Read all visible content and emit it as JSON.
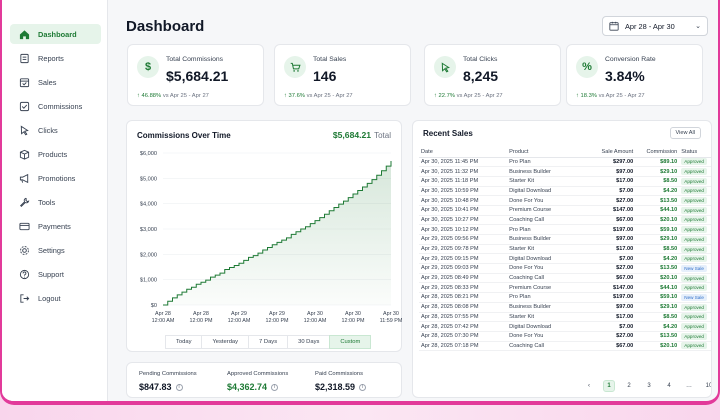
{
  "sidebar": {
    "items": [
      {
        "label": "Dashboard",
        "icon": "home-icon"
      },
      {
        "label": "Reports",
        "icon": "reports-icon"
      },
      {
        "label": "Sales",
        "icon": "sales-icon"
      },
      {
        "label": "Commissions",
        "icon": "commissions-icon"
      },
      {
        "label": "Clicks",
        "icon": "cursor-icon"
      },
      {
        "label": "Products",
        "icon": "box-icon"
      },
      {
        "label": "Promotions",
        "icon": "megaphone-icon"
      },
      {
        "label": "Tools",
        "icon": "wrench-icon"
      },
      {
        "label": "Payments",
        "icon": "card-icon"
      },
      {
        "label": "Settings",
        "icon": "gear-icon"
      },
      {
        "label": "Support",
        "icon": "help-icon"
      },
      {
        "label": "Logout",
        "icon": "logout-icon"
      }
    ]
  },
  "header": {
    "title": "Dashboard",
    "date_range": "Apr 28 - Apr 30"
  },
  "kpis": [
    {
      "label": "Total Commissions",
      "value": "$5,684.21",
      "change": "46.88%",
      "compare": "vs Apr 25 - Apr 27",
      "icon": "dollar-icon"
    },
    {
      "label": "Total Sales",
      "value": "146",
      "change": "37.6%",
      "compare": "vs Apr 25 - Apr 27",
      "icon": "cart-icon"
    },
    {
      "label": "Total Clicks",
      "value": "8,245",
      "change": "22.7%",
      "compare": "vs Apr 25 - Apr 27",
      "icon": "cursor-icon"
    },
    {
      "label": "Conversion Rate",
      "value": "3.84%",
      "change": "18.3%",
      "compare": "vs Apr 25 - Apr 27",
      "icon": "percent-icon"
    }
  ],
  "chart": {
    "title": "Commissions Over Time",
    "total_value": "$5,684.21",
    "total_label": "Total",
    "filters": [
      "Today",
      "Yesterday",
      "7 Days",
      "30 Days",
      "Custom"
    ],
    "active_filter": "Custom"
  },
  "chart_data": {
    "type": "area",
    "title": "Commissions Over Time",
    "ylim": [
      0,
      6000
    ],
    "yticks": [
      "$0",
      "$1,000",
      "$2,000",
      "$3,000",
      "$4,000",
      "$5,000",
      "$6,000"
    ],
    "xticks": [
      [
        "Apr 28",
        "12:00 AM"
      ],
      [
        "Apr 28",
        "12:00 PM"
      ],
      [
        "Apr 29",
        "12:00 AM"
      ],
      [
        "Apr 29",
        "12:00 PM"
      ],
      [
        "Apr 30",
        "12:00 AM"
      ],
      [
        "Apr 30",
        "12:00 PM"
      ],
      [
        "Apr 30",
        "11:59 PM"
      ]
    ],
    "x_hours": [
      0,
      12,
      24,
      36,
      48,
      60,
      72
    ],
    "series": [
      {
        "points": [
          [
            0,
            0
          ],
          [
            1.5,
            150
          ],
          [
            3,
            280
          ],
          [
            4.5,
            400
          ],
          [
            6,
            510
          ],
          [
            7.5,
            620
          ],
          [
            9,
            700
          ],
          [
            10.5,
            820
          ],
          [
            12,
            900
          ],
          [
            13.5,
            980
          ],
          [
            15,
            1100
          ],
          [
            16.5,
            1180
          ],
          [
            18,
            1260
          ],
          [
            19.5,
            1400
          ],
          [
            21,
            1480
          ],
          [
            22.5,
            1560
          ],
          [
            24,
            1650
          ],
          [
            25.5,
            1760
          ],
          [
            27,
            1880
          ],
          [
            28.5,
            1950
          ],
          [
            30,
            2050
          ],
          [
            31.5,
            2170
          ],
          [
            33,
            2270
          ],
          [
            34.5,
            2380
          ],
          [
            36,
            2470
          ],
          [
            37.5,
            2560
          ],
          [
            39,
            2650
          ],
          [
            40.5,
            2790
          ],
          [
            42,
            2890
          ],
          [
            43.5,
            3000
          ],
          [
            45,
            3090
          ],
          [
            46.5,
            3210
          ],
          [
            48,
            3330
          ],
          [
            49.5,
            3450
          ],
          [
            51,
            3580
          ],
          [
            52.5,
            3720
          ],
          [
            54,
            3850
          ],
          [
            55.5,
            3980
          ],
          [
            57,
            4100
          ],
          [
            58.5,
            4240
          ],
          [
            60,
            4380
          ],
          [
            61.5,
            4520
          ],
          [
            63,
            4660
          ],
          [
            64.5,
            4800
          ],
          [
            66,
            4950
          ],
          [
            67.5,
            5120
          ],
          [
            69,
            5300
          ],
          [
            70.5,
            5480
          ],
          [
            72,
            5684.21
          ]
        ]
      }
    ]
  },
  "sales": {
    "title": "Recent Sales",
    "view_all": "View All",
    "columns": [
      "Date",
      "Product",
      "Sale Amount",
      "Commission",
      "Status"
    ],
    "rows": [
      [
        "Apr 30, 2025 11:45 PM",
        "Pro Plan",
        "$297.00",
        "$89.10",
        "Approved"
      ],
      [
        "Apr 30, 2025 11:32 PM",
        "Business Builder",
        "$97.00",
        "$29.10",
        "Approved"
      ],
      [
        "Apr 30, 2025 11:18 PM",
        "Starter Kit",
        "$17.00",
        "$8.50",
        "Approved"
      ],
      [
        "Apr 30, 2025 10:59 PM",
        "Digital Download",
        "$7.00",
        "$4.20",
        "Approved"
      ],
      [
        "Apr 30, 2025 10:48 PM",
        "Done For You",
        "$27.00",
        "$13.50",
        "Approved"
      ],
      [
        "Apr 30, 2025 10:41 PM",
        "Premium Course",
        "$147.00",
        "$44.10",
        "Approved"
      ],
      [
        "Apr 30, 2025 10:27 PM",
        "Coaching Call",
        "$67.00",
        "$20.10",
        "Approved"
      ],
      [
        "Apr 30, 2025 10:12 PM",
        "Pro Plan",
        "$197.00",
        "$59.10",
        "Approved"
      ],
      [
        "Apr 29, 2025 09:56 PM",
        "Business Builder",
        "$97.00",
        "$29.10",
        "Approved"
      ],
      [
        "Apr 29, 2025 09:78 PM",
        "Starter Kit",
        "$17.00",
        "$8.50",
        "Approved"
      ],
      [
        "Apr 29, 2025 09:15 PM",
        "Digital Download",
        "$7.00",
        "$4.20",
        "Approved"
      ],
      [
        "Apr 29, 2025 09:03 PM",
        "Done For You",
        "$27.00",
        "$13.50",
        "New Sale"
      ],
      [
        "Apr 29, 2025 08:49 PM",
        "Coaching Call",
        "$67.00",
        "$20.10",
        "Approved"
      ],
      [
        "Apr 29, 2025 08:33 PM",
        "Premium Course",
        "$147.00",
        "$44.10",
        "Approved"
      ],
      [
        "Apr 28, 2025 08:21 PM",
        "Pro Plan",
        "$197.00",
        "$59.10",
        "New Sale"
      ],
      [
        "Apr 28, 2025 08:08 PM",
        "Business Builder",
        "$97.00",
        "$29.10",
        "Approved"
      ],
      [
        "Apr 28, 2025 07:55 PM",
        "Starter Kit",
        "$17.00",
        "$8.50",
        "Approved"
      ],
      [
        "Apr 28, 2025 07:42 PM",
        "Digital Download",
        "$7.00",
        "$4.20",
        "Approved"
      ],
      [
        "Apr 28, 2025 07:30 PM",
        "Done For You",
        "$27.00",
        "$13.50",
        "Approved"
      ],
      [
        "Apr 28, 2025 07:18 PM",
        "Coaching Call",
        "$67.00",
        "$20.10",
        "Approved"
      ]
    ]
  },
  "pagination": {
    "pages": [
      "1",
      "2",
      "3",
      "4",
      "…",
      "10"
    ],
    "active": "1",
    "prev": "‹",
    "next": "›"
  },
  "stats": [
    {
      "label": "Pending Commissions",
      "value": "$847.83"
    },
    {
      "label": "Approved Commissions",
      "value": "$4,362.74"
    },
    {
      "label": "Paid Commissions",
      "value": "$2,318.59"
    }
  ],
  "colors": {
    "accent": "#1e7a35",
    "accent_light": "#e6f4ea",
    "frame": "#e23a9a",
    "new_sale": "#2f6fc9"
  }
}
